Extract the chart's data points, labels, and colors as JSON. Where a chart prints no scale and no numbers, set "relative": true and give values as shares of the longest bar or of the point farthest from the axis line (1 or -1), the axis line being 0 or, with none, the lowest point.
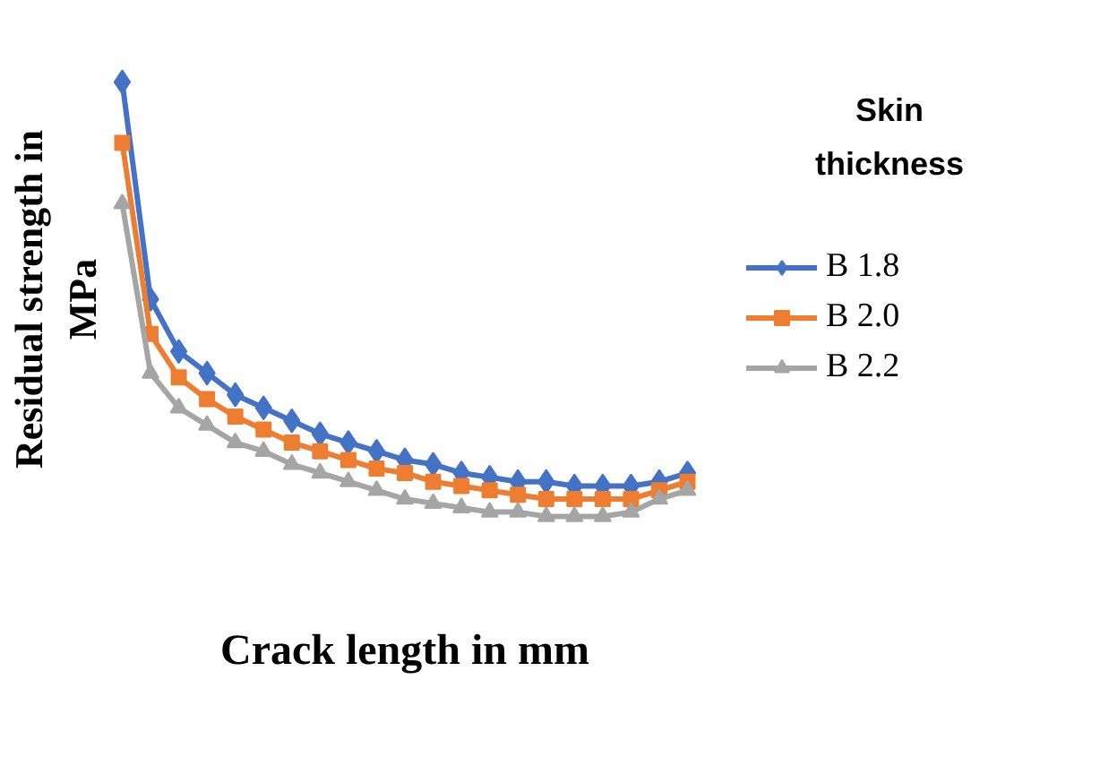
{
  "chart_data": {
    "type": "line",
    "relative": true,
    "xlabel": "Crack length in mm",
    "ylabel": "Residual strength in MPa",
    "legend_title": "Skin thickness",
    "legend": "right",
    "grid": false,
    "tick_labels": false,
    "categories": [
      null,
      null,
      null,
      null,
      null,
      null,
      null,
      null,
      null,
      null,
      null,
      null,
      null,
      null,
      null,
      null,
      null,
      null,
      null,
      null,
      null
    ],
    "series": [
      {
        "name": "B 1.8",
        "color": "#4472c4",
        "marker": "diamond",
        "values": [
          1.0,
          0.5,
          0.38,
          0.33,
          0.28,
          0.25,
          0.22,
          0.19,
          0.17,
          0.15,
          0.13,
          0.12,
          0.1,
          0.09,
          0.08,
          0.08,
          0.07,
          0.07,
          0.07,
          0.08,
          0.1
        ]
      },
      {
        "name": "B 2.0",
        "color": "#ed7d31",
        "marker": "square",
        "values": [
          0.86,
          0.42,
          0.32,
          0.27,
          0.23,
          0.2,
          0.17,
          0.15,
          0.13,
          0.11,
          0.1,
          0.08,
          0.07,
          0.06,
          0.05,
          0.04,
          0.04,
          0.04,
          0.04,
          0.06,
          0.08
        ]
      },
      {
        "name": "B 2.2",
        "color": "#a5a5a5",
        "marker": "triangle",
        "values": [
          0.72,
          0.33,
          0.25,
          0.21,
          0.17,
          0.15,
          0.12,
          0.1,
          0.08,
          0.06,
          0.04,
          0.03,
          0.02,
          0.01,
          0.01,
          0.0,
          0.0,
          0.0,
          0.01,
          0.04,
          0.06
        ]
      }
    ]
  }
}
